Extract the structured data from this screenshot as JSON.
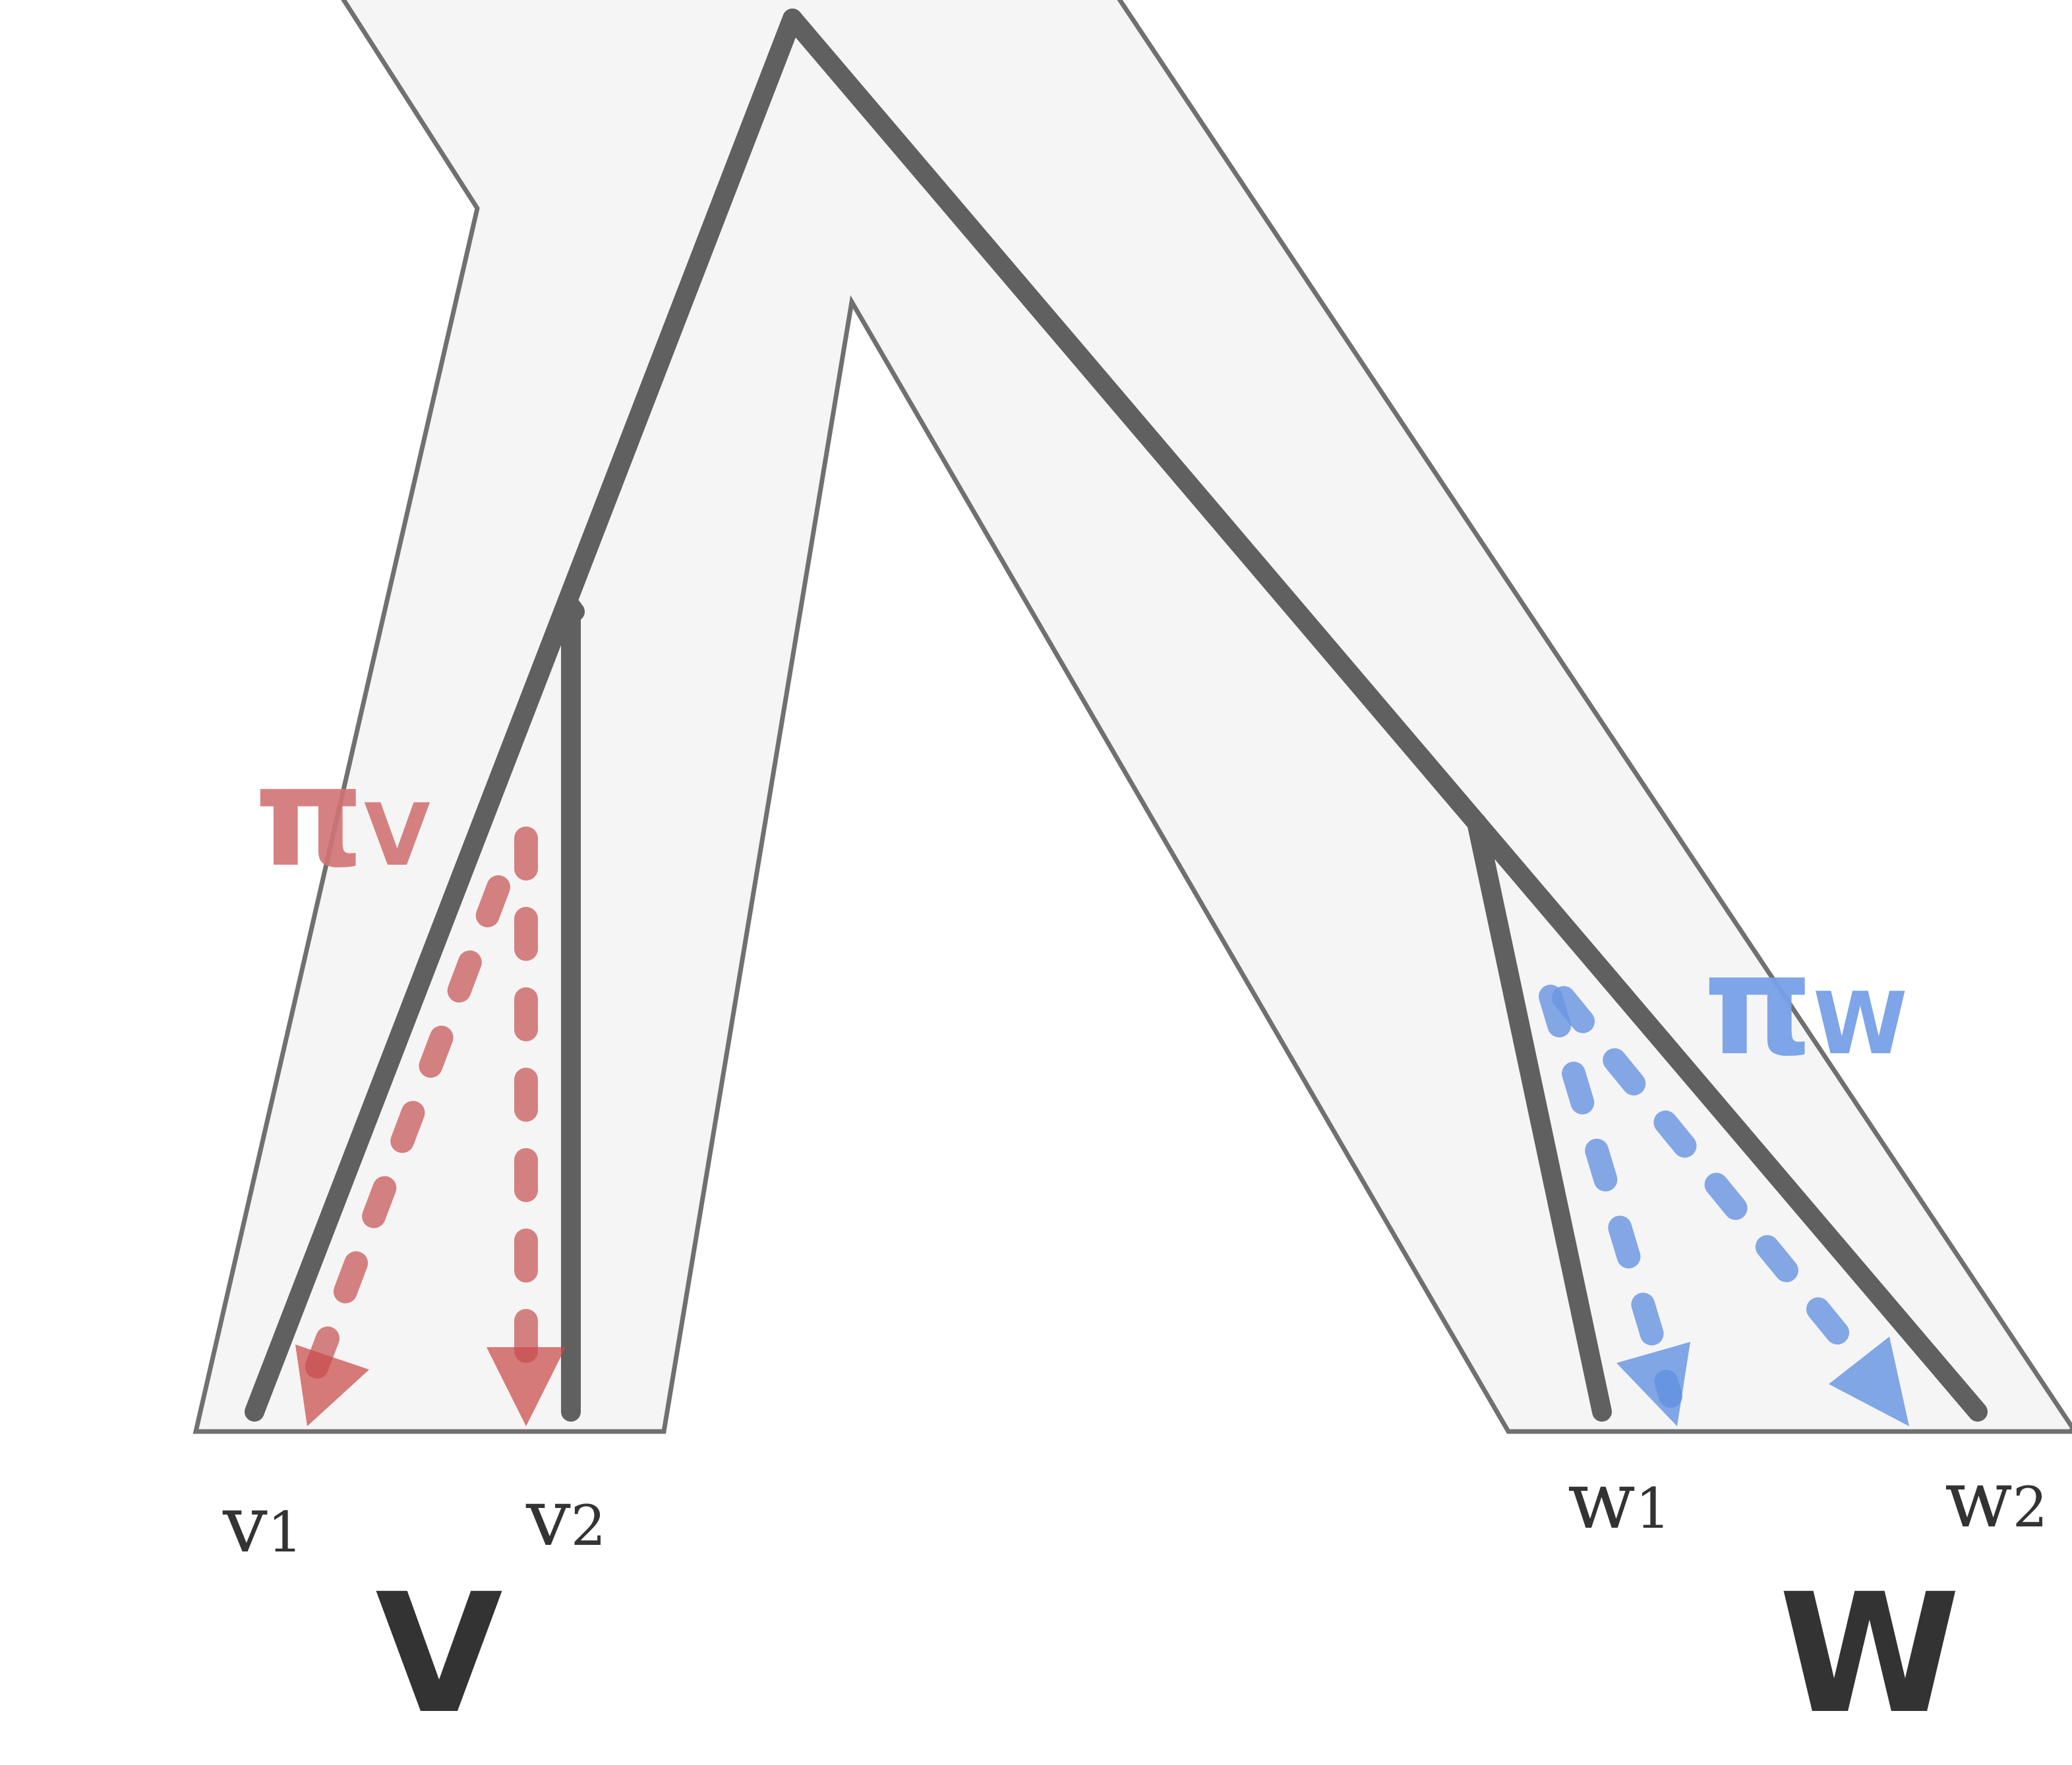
{
  "leaves": {
    "v1": {
      "base": "v",
      "sub": "1"
    },
    "v2": {
      "base": "v",
      "sub": "2"
    },
    "w1": {
      "base": "w",
      "sub": "1"
    },
    "w2": {
      "base": "w",
      "sub": "2"
    }
  },
  "clades": {
    "v": "V",
    "w": "W"
  },
  "maps": {
    "pi_v": {
      "base": "π",
      "sub": "V"
    },
    "pi_w": {
      "base": "π",
      "sub": "W"
    }
  },
  "colors": {
    "species_fill": "#f5f5f5",
    "species_stroke": "#707070",
    "gene_tree": "#606060",
    "map_v": "#cc6666",
    "map_w": "#6a96e2",
    "text": "#333333"
  }
}
